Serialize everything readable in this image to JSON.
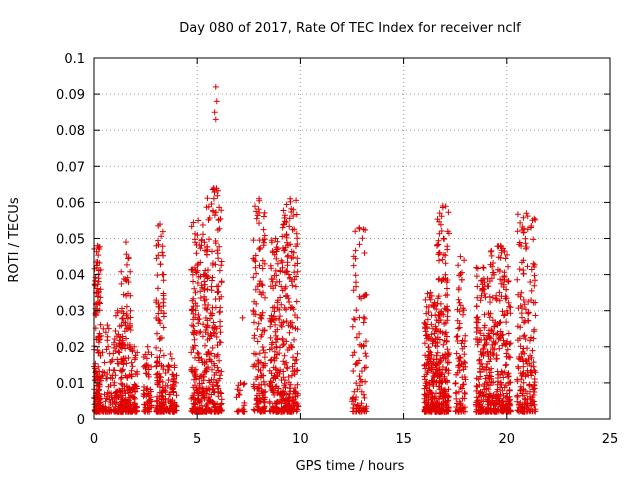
{
  "chart_data": {
    "type": "scatter",
    "title": "Day 080 of 2017, Rate Of TEC Index for receiver nclf",
    "xlabel": "GPS time / hours",
    "ylabel": "ROTI / TECUs",
    "xlim": [
      0,
      25
    ],
    "ylim": [
      0,
      0.1
    ],
    "grid": true,
    "marker": "+",
    "marker_color": "#e00000",
    "x_ticks": [
      0,
      5,
      10,
      15,
      20,
      25
    ],
    "x_tick_labels": [
      "0",
      "5",
      "10",
      "15",
      "20",
      "25"
    ],
    "y_ticks": [
      0,
      0.01,
      0.02,
      0.03,
      0.04,
      0.05,
      0.06,
      0.07,
      0.08,
      0.09,
      0.1
    ],
    "y_tick_labels": [
      "0",
      "0.01",
      "0.02",
      "0.03",
      "0.04",
      "0.05",
      "0.06",
      "0.07",
      "0.08",
      "0.09",
      "0.1"
    ],
    "clusters": [
      {
        "x_range": [
          0.0,
          0.35
        ],
        "y_max": 0.048,
        "count": 150
      },
      {
        "x_range": [
          0.4,
          0.9
        ],
        "y_max": 0.026,
        "count": 60
      },
      {
        "x_range": [
          0.9,
          1.4
        ],
        "y_max": 0.03,
        "count": 90
      },
      {
        "x_range": [
          1.3,
          1.8
        ],
        "y_max": 0.049,
        "count": 130
      },
      {
        "x_range": [
          1.8,
          2.1
        ],
        "y_max": 0.02,
        "count": 50
      },
      {
        "x_range": [
          2.4,
          2.8
        ],
        "y_max": 0.02,
        "count": 60
      },
      {
        "x_range": [
          3.0,
          3.4
        ],
        "y_max": 0.054,
        "count": 120
      },
      {
        "x_range": [
          3.4,
          4.0
        ],
        "y_max": 0.018,
        "count": 80
      },
      {
        "x_range": [
          4.7,
          5.4
        ],
        "y_max": 0.055,
        "count": 200
      },
      {
        "x_range": [
          5.4,
          6.2
        ],
        "y_max": 0.064,
        "count": 220
      },
      {
        "x_range": [
          6.9,
          7.3
        ],
        "y_max": 0.01,
        "count": 20
      },
      {
        "x_range": [
          7.7,
          8.3
        ],
        "y_max": 0.061,
        "count": 150
      },
      {
        "x_range": [
          8.5,
          9.1
        ],
        "y_max": 0.05,
        "count": 160
      },
      {
        "x_range": [
          9.1,
          9.9
        ],
        "y_max": 0.061,
        "count": 220
      },
      {
        "x_range": [
          12.5,
          13.2
        ],
        "y_max": 0.053,
        "count": 90
      },
      {
        "x_range": [
          16.0,
          16.6
        ],
        "y_max": 0.035,
        "count": 200
      },
      {
        "x_range": [
          16.6,
          17.2
        ],
        "y_max": 0.059,
        "count": 220
      },
      {
        "x_range": [
          17.5,
          18.0
        ],
        "y_max": 0.045,
        "count": 90
      },
      {
        "x_range": [
          18.5,
          19.2
        ],
        "y_max": 0.042,
        "count": 180
      },
      {
        "x_range": [
          19.2,
          20.2
        ],
        "y_max": 0.048,
        "count": 250
      },
      {
        "x_range": [
          20.5,
          21.4
        ],
        "y_max": 0.057,
        "count": 200
      }
    ],
    "outliers": [
      {
        "x": 5.9,
        "y": 0.092
      },
      {
        "x": 5.95,
        "y": 0.088
      },
      {
        "x": 5.85,
        "y": 0.085
      },
      {
        "x": 5.9,
        "y": 0.083
      },
      {
        "x": 7.2,
        "y": 0.028
      }
    ]
  }
}
